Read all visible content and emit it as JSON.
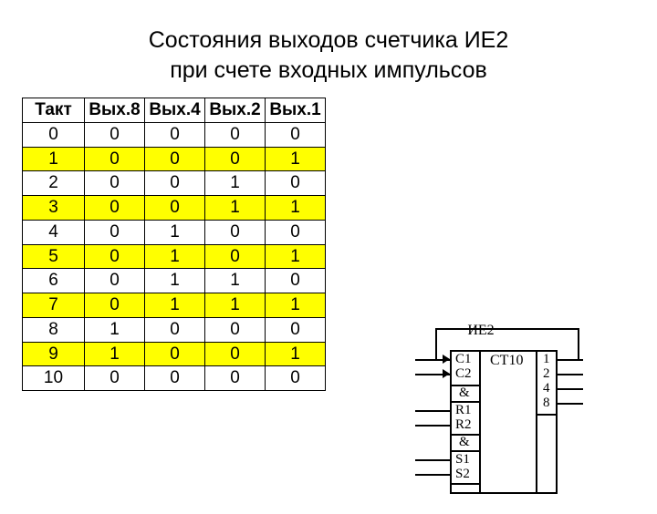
{
  "title_line1": "Состояния выходов счетчика ИЕ2",
  "title_line2": "при счете входных импульсов",
  "table": {
    "columns": [
      "Такт",
      "Вых.8",
      "Вых.4",
      "Вых.2",
      "Вых.1"
    ],
    "rows": [
      {
        "cells": [
          "0",
          "0",
          "0",
          "0",
          "0"
        ],
        "highlight": false
      },
      {
        "cells": [
          "1",
          "0",
          "0",
          "0",
          "1"
        ],
        "highlight": true
      },
      {
        "cells": [
          "2",
          "0",
          "0",
          "1",
          "0"
        ],
        "highlight": false
      },
      {
        "cells": [
          "3",
          "0",
          "0",
          "1",
          "1"
        ],
        "highlight": true
      },
      {
        "cells": [
          "4",
          "0",
          "1",
          "0",
          "0"
        ],
        "highlight": false
      },
      {
        "cells": [
          "5",
          "0",
          "1",
          "0",
          "1"
        ],
        "highlight": true
      },
      {
        "cells": [
          "6",
          "0",
          "1",
          "1",
          "0"
        ],
        "highlight": false
      },
      {
        "cells": [
          "7",
          "0",
          "1",
          "1",
          "1"
        ],
        "highlight": true
      },
      {
        "cells": [
          "8",
          "1",
          "0",
          "0",
          "0"
        ],
        "highlight": false
      },
      {
        "cells": [
          "9",
          "1",
          "0",
          "0",
          "1"
        ],
        "highlight": true
      },
      {
        "cells": [
          "10",
          "0",
          "0",
          "0",
          "0"
        ],
        "highlight": false
      }
    ],
    "header_bg": "#ffffff",
    "highlight_bg": "#ffff00",
    "border_color": "#000000",
    "font_size": 19
  },
  "chip": {
    "name": "ИЕ2",
    "top_label": "CT10",
    "left_labels": [
      "C1",
      "C2",
      "&",
      "R1",
      "R2",
      "&",
      "S1",
      "S2"
    ],
    "right_labels": [
      "1",
      "2",
      "4",
      "8"
    ]
  },
  "colors": {
    "background": "#ffffff",
    "text": "#000000"
  }
}
